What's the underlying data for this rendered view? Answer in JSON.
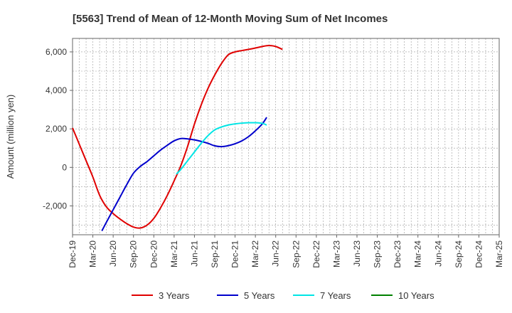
{
  "chart_data": {
    "type": "line",
    "title": "[5563]  Trend of Mean of 12-Month Moving Sum of Net Incomes",
    "xlabel": "",
    "ylabel": "Amount (million yen)",
    "x_tick_labels": [
      "Dec-19",
      "Mar-20",
      "Jun-20",
      "Sep-20",
      "Dec-20",
      "Mar-21",
      "Jun-21",
      "Sep-21",
      "Dec-21",
      "Mar-22",
      "Jun-22",
      "Sep-22",
      "Dec-22",
      "Mar-23",
      "Jun-23",
      "Sep-23",
      "Dec-23",
      "Mar-24",
      "Jun-24",
      "Sep-24",
      "Dec-24",
      "Mar-25"
    ],
    "ylim": [
      -3500,
      6700
    ],
    "y_ticks": [
      -2000,
      0,
      2000,
      4000,
      6000
    ],
    "y_tick_labels": [
      "-2,000",
      "0",
      "2,000",
      "4,000",
      "6,000"
    ],
    "grid": true,
    "legend_position": "bottom",
    "series": [
      {
        "name": "3 Years",
        "color": "#e00000",
        "points": [
          [
            0,
            2050
          ],
          [
            1,
            1200
          ],
          [
            2,
            350
          ],
          [
            3,
            -500
          ],
          [
            4,
            -1450
          ],
          [
            5,
            -2050
          ],
          [
            6,
            -2400
          ],
          [
            7,
            -2680
          ],
          [
            8,
            -2920
          ],
          [
            9,
            -3100
          ],
          [
            10,
            -3150
          ],
          [
            11,
            -3000
          ],
          [
            12,
            -2650
          ],
          [
            13,
            -2100
          ],
          [
            14,
            -1450
          ],
          [
            15,
            -700
          ],
          [
            16,
            100
          ],
          [
            17,
            1100
          ],
          [
            18,
            2250
          ],
          [
            19,
            3250
          ],
          [
            20,
            4100
          ],
          [
            21,
            4800
          ],
          [
            22,
            5400
          ],
          [
            23,
            5850
          ],
          [
            24,
            6000
          ],
          [
            25,
            6070
          ],
          [
            26,
            6130
          ],
          [
            27,
            6200
          ],
          [
            28,
            6280
          ],
          [
            29,
            6330
          ],
          [
            30,
            6280
          ],
          [
            31,
            6130
          ]
        ]
      },
      {
        "name": "5 Years",
        "color": "#0000cc",
        "points": [
          [
            4.33,
            -3300
          ],
          [
            5,
            -2850
          ],
          [
            6,
            -2200
          ],
          [
            7,
            -1550
          ],
          [
            8,
            -900
          ],
          [
            9,
            -300
          ],
          [
            10,
            50
          ],
          [
            11,
            300
          ],
          [
            12,
            600
          ],
          [
            13,
            900
          ],
          [
            14,
            1150
          ],
          [
            15,
            1380
          ],
          [
            16,
            1500
          ],
          [
            17,
            1480
          ],
          [
            18,
            1430
          ],
          [
            19,
            1350
          ],
          [
            20,
            1250
          ],
          [
            21,
            1120
          ],
          [
            22,
            1080
          ],
          [
            23,
            1130
          ],
          [
            24,
            1230
          ],
          [
            25,
            1380
          ],
          [
            26,
            1600
          ],
          [
            27,
            1900
          ],
          [
            28,
            2250
          ],
          [
            28.67,
            2600
          ]
        ]
      },
      {
        "name": "7 Years",
        "color": "#00e5e5",
        "points": [
          [
            15.33,
            -350
          ],
          [
            16,
            -100
          ],
          [
            17,
            350
          ],
          [
            18,
            800
          ],
          [
            19,
            1250
          ],
          [
            20,
            1650
          ],
          [
            21,
            1950
          ],
          [
            22,
            2100
          ],
          [
            23,
            2200
          ],
          [
            24,
            2260
          ],
          [
            25,
            2300
          ],
          [
            26,
            2320
          ],
          [
            27,
            2320
          ],
          [
            28,
            2290
          ],
          [
            28.67,
            2200
          ]
        ]
      },
      {
        "name": "10 Years",
        "color": "#008000",
        "points": []
      }
    ]
  }
}
